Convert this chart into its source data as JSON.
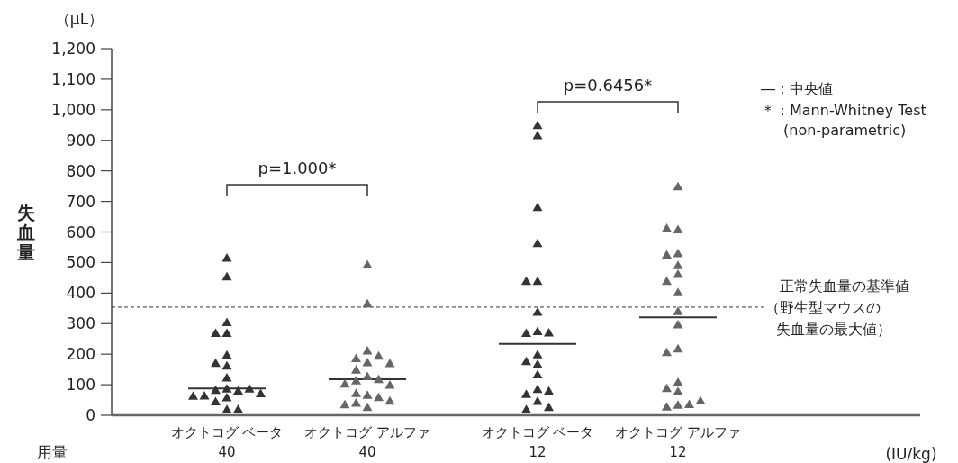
{
  "chart_data": {
    "type": "scatter",
    "categories": [
      "オクトコグ ベータ\n40",
      "オクトコグ アルファ\n40",
      "オクトコグ ベータ\n12",
      "オクトコグ アルファ\n12"
    ],
    "xlabel": "用量",
    "ylabel": "失血量",
    "ylim": [
      0,
      1200
    ],
    "yticks": [
      0,
      100,
      200,
      300,
      400,
      500,
      600,
      700,
      800,
      900,
      {
        "value": 1000,
        "label": "1,000"
      },
      {
        "value": 1100,
        "label": "1,100"
      },
      {
        "value": 1200,
        "label": "1,200"
      }
    ],
    "marker": "triangle",
    "series": [
      {
        "color": "#333333",
        "x": [
          "オクトコグ ベータ\n40",
          "オクトコグ ベータ\n40",
          "オクトコグ ベータ\n40",
          "オクトコグ ベータ\n40",
          "オクトコグ ベータ\n40",
          "オクトコグ ベータ\n40",
          "オクトコグ ベータ\n40",
          "オクトコグ ベータ\n40",
          "オクトコグ ベータ\n40",
          "オクトコグ ベータ\n40",
          "オクトコグ ベータ\n40",
          "オクトコグ ベータ\n40",
          "オクトコグ ベータ\n40",
          "オクトコグ ベータ\n40",
          "オクトコグ ベータ\n40",
          "オクトコグ ベータ\n40",
          "オクトコグ ベータ\n40",
          "オクトコグ ベータ\n40",
          "オクトコグ ベータ\n40",
          "オクトコグ ベータ\n40"
        ],
        "values": [
          516,
          455,
          305,
          270,
          270,
          198,
          172,
          163,
          124,
          88,
          83,
          81,
          88,
          65,
          59,
          72,
          64,
          46,
          20,
          21
        ]
      },
      {
        "color": "#666666",
        "x": [
          "オクトコグ アルファ\n40",
          "オクトコグ アルファ\n40",
          "オクトコグ アルファ\n40",
          "オクトコグ アルファ\n40",
          "オクトコグ アルファ\n40",
          "オクトコグ アルファ\n40",
          "オクトコグ アルファ\n40",
          "オクトコグ アルファ\n40",
          "オクトコグ アルファ\n40",
          "オクトコグ アルファ\n40",
          "オクトコグ アルファ\n40",
          "オクトコグ アルファ\n40",
          "オクトコグ アルファ\n40",
          "オクトコグ アルファ\n40",
          "オクトコグ アルファ\n40",
          "オクトコグ アルファ\n40",
          "オクトコグ アルファ\n40",
          "オクトコグ アルファ\n40",
          "オクトコグ アルファ\n40",
          "オクトコグ アルファ\n40"
        ],
        "values": [
          494,
          366,
          212,
          187,
          195,
          174,
          171,
          150,
          128,
          114,
          119,
          100,
          104,
          67,
          73,
          60,
          41,
          48,
          27,
          36
        ]
      },
      {
        "color": "#333333",
        "x": [
          "オクトコグ ベータ\n12",
          "オクトコグ ベータ\n12",
          "オクトコグ ベータ\n12",
          "オクトコグ ベータ\n12",
          "オクトコグ ベータ\n12",
          "オクトコグ ベータ\n12",
          "オクトコグ ベータ\n12",
          "オクトコグ ベータ\n12",
          "オクトコグ ベータ\n12",
          "オクトコグ ベータ\n12",
          "オクトコグ ベータ\n12",
          "オクトコグ ベータ\n12",
          "オクトコグ ベータ\n12",
          "オクトコグ ベータ\n12",
          "オクトコグ ベータ\n12",
          "オクトコグ ベータ\n12",
          "オクトコグ ベータ\n12",
          "オクトコグ ベータ\n12",
          "オクトコグ ベータ\n12",
          "オクトコグ ベータ\n12"
        ],
        "values": [
          950,
          917,
          682,
          564,
          440,
          440,
          339,
          276,
          270,
          271,
          200,
          178,
          168,
          134,
          86,
          70,
          80,
          47,
          20,
          27
        ]
      },
      {
        "color": "#666666",
        "x": [
          "オクトコグ アルファ\n12",
          "オクトコグ アルファ\n12",
          "オクトコグ アルファ\n12",
          "オクトコグ アルファ\n12",
          "オクトコグ アルファ\n12",
          "オクトコグ アルファ\n12",
          "オクトコグ アルファ\n12",
          "オクトコグ アルファ\n12",
          "オクトコグ アルファ\n12",
          "オクトコグ アルファ\n12",
          "オクトコグ アルファ\n12",
          "オクトコグ アルファ\n12",
          "オクトコグ アルファ\n12",
          "オクトコグ アルファ\n12",
          "オクトコグ アルファ\n12",
          "オクトコグ アルファ\n12",
          "オクトコグ アルファ\n12",
          "オクトコグ アルファ\n12",
          "オクトコグ アルファ\n12",
          "オクトコグ アルファ\n12"
        ],
        "values": [
          750,
          609,
          613,
          531,
          526,
          492,
          463,
          440,
          403,
          341,
          298,
          219,
          207,
          109,
          89,
          79,
          35,
          29,
          37,
          49
        ]
      }
    ],
    "ref_lines": [
      {
        "axis": "y",
        "value": 354,
        "label": "正常失血量の基準値（野生型マウスの失血量の最大値）",
        "color": "#333333",
        "line_style": "dashed"
      },
      {
        "axis": "y",
        "value": 88,
        "color": "#333333",
        "line_style": "solid"
      },
      {
        "axis": "y",
        "value": 118,
        "color": "#333333",
        "line_style": "solid"
      },
      {
        "axis": "y",
        "value": 234,
        "color": "#333333",
        "line_style": "solid"
      },
      {
        "axis": "y",
        "value": 321,
        "color": "#333333",
        "line_style": "solid"
      }
    ],
    "annotations": [
      "（μL）",
      "p=1.000*",
      "p=0.6456*",
      "―：中央値",
      "＊：Mann-Whitney Test\n(non-parametric)",
      "(IU/kg)"
    ]
  }
}
